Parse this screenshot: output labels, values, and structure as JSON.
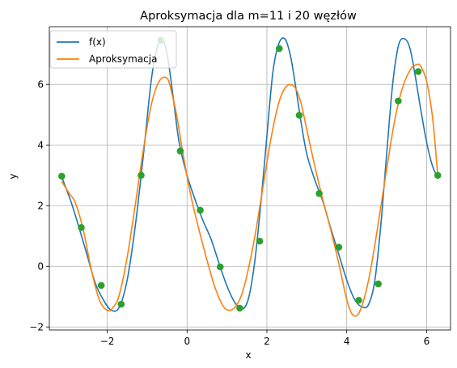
{
  "chart_data": {
    "type": "line",
    "title": "Aproksymacja dla m=11 i 20 węzłów",
    "xlabel": "x",
    "ylabel": "y",
    "xlim": [
      -3.45,
      6.6
    ],
    "ylim": [
      -2.1,
      7.9
    ],
    "xticks": [
      -2,
      0,
      2,
      4,
      6
    ],
    "yticks": [
      -2,
      0,
      2,
      4,
      6
    ],
    "grid": true,
    "legend_position": "top-left",
    "series": [
      {
        "name": "f(x)",
        "color": "#1f77b4",
        "x": [
          -3.14,
          -2.9,
          -2.7,
          -2.5,
          -2.3,
          -2.1,
          -1.9,
          -1.7,
          -1.5,
          -1.3,
          -1.1,
          -0.9,
          -0.75,
          -0.62,
          -0.5,
          -0.35,
          -0.2,
          0.0,
          0.2,
          0.4,
          0.6,
          0.8,
          1.0,
          1.2,
          1.4,
          1.55,
          1.7,
          1.85,
          2.0,
          2.15,
          2.3,
          2.45,
          2.58,
          2.7,
          2.85,
          3.0,
          3.2,
          3.4,
          3.6,
          3.8,
          4.0,
          4.2,
          4.4,
          4.55,
          4.7,
          4.85,
          5.0,
          5.15,
          5.3,
          5.45,
          5.58,
          5.7,
          5.85,
          6.0,
          6.15,
          6.28
        ],
        "y": [
          2.95,
          2.1,
          1.25,
          0.35,
          -0.55,
          -1.1,
          -1.45,
          -1.35,
          -0.45,
          1.3,
          3.6,
          6.1,
          7.2,
          7.45,
          7.0,
          5.6,
          4.1,
          3.0,
          2.2,
          1.5,
          0.9,
          0.1,
          -0.65,
          -1.2,
          -1.4,
          -1.0,
          0.2,
          2.1,
          4.3,
          6.4,
          7.35,
          7.5,
          7.0,
          6.1,
          4.8,
          3.7,
          2.85,
          2.15,
          1.25,
          0.4,
          -0.45,
          -1.1,
          -1.35,
          -1.25,
          -0.5,
          1.3,
          3.7,
          6.0,
          7.3,
          7.5,
          7.2,
          6.4,
          5.2,
          4.1,
          3.3,
          2.95
        ]
      },
      {
        "name": "Aproksymacja",
        "color": "#ff7f0e",
        "x": [
          -3.14,
          -2.95,
          -2.8,
          -2.6,
          -2.4,
          -2.2,
          -2.0,
          -1.85,
          -1.7,
          -1.5,
          -1.3,
          -1.1,
          -0.9,
          -0.7,
          -0.5,
          -0.38,
          -0.25,
          -0.1,
          0.1,
          0.3,
          0.5,
          0.7,
          0.9,
          1.05,
          1.2,
          1.35,
          1.5,
          1.7,
          1.9,
          2.1,
          2.3,
          2.5,
          2.7,
          2.85,
          3.0,
          3.2,
          3.4,
          3.6,
          3.8,
          4.0,
          4.15,
          4.3,
          4.45,
          4.6,
          4.8,
          5.0,
          5.2,
          5.4,
          5.6,
          5.75,
          5.85,
          6.0,
          6.15,
          6.28
        ],
        "y": [
          2.8,
          2.4,
          2.1,
          1.2,
          -0.1,
          -1.1,
          -1.45,
          -1.35,
          -0.95,
          0.3,
          2.0,
          3.8,
          5.3,
          6.1,
          6.2,
          5.7,
          4.9,
          3.7,
          2.3,
          1.2,
          0.2,
          -0.7,
          -1.3,
          -1.45,
          -1.35,
          -1.0,
          -0.3,
          1.0,
          2.6,
          4.2,
          5.4,
          5.95,
          5.9,
          5.4,
          4.5,
          3.3,
          2.2,
          1.2,
          0.1,
          -1.1,
          -1.6,
          -1.55,
          -1.0,
          -0.1,
          1.5,
          3.2,
          4.8,
          5.9,
          6.5,
          6.65,
          6.6,
          6.1,
          4.9,
          3.0
        ]
      },
      {
        "name": "",
        "type": "scatter",
        "color": "#2ca02c",
        "x": [
          -3.14,
          -2.65,
          -2.15,
          -1.65,
          -1.15,
          -0.66,
          -0.17,
          0.33,
          0.83,
          1.32,
          1.82,
          2.31,
          2.81,
          3.31,
          3.8,
          4.3,
          4.79,
          5.29,
          5.79,
          6.28
        ],
        "y": [
          2.97,
          1.28,
          -0.63,
          -1.25,
          3.0,
          7.45,
          3.8,
          1.85,
          -0.02,
          -1.38,
          0.83,
          7.18,
          4.98,
          2.4,
          0.63,
          -1.12,
          -0.58,
          5.45,
          6.42,
          3.0
        ]
      }
    ]
  }
}
